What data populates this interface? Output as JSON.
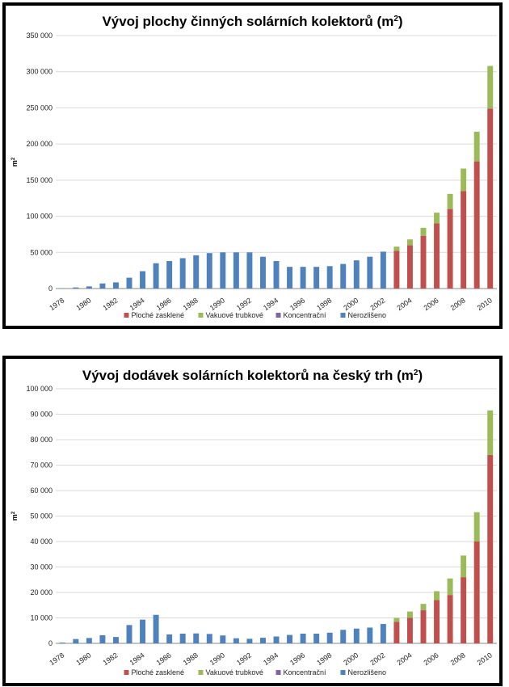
{
  "chart_data": [
    {
      "type": "bar",
      "stacked": true,
      "title": "Vývoj plochy činných solárních kolektorů (m",
      "title_sup": "2",
      "title_end": ")",
      "ylabel": "m",
      "ylabel_sup": "2",
      "ylim": [
        0,
        350000
      ],
      "yticks": [
        0,
        50000,
        100000,
        150000,
        200000,
        250000,
        300000,
        350000
      ],
      "ytick_labels": [
        "0",
        "50 000",
        "100 000",
        "150 000",
        "200 000",
        "250 000",
        "300 000",
        "350 000"
      ],
      "categories": [
        "1978",
        "1979",
        "1980",
        "1981",
        "1982",
        "1983",
        "1984",
        "1985",
        "1986",
        "1987",
        "1988",
        "1989",
        "1990",
        "1991",
        "1992",
        "1993",
        "1994",
        "1995",
        "1996",
        "1997",
        "1998",
        "1999",
        "2000",
        "2001",
        "2002",
        "2003",
        "2004",
        "2005",
        "2006",
        "2007",
        "2008",
        "2009",
        "2010"
      ],
      "xtick_labels": [
        "1978",
        "",
        "1980",
        "",
        "1982",
        "",
        "1984",
        "",
        "1986",
        "",
        "1988",
        "",
        "1990",
        "",
        "1992",
        "",
        "1994",
        "",
        "1996",
        "",
        "1998",
        "",
        "2000",
        "",
        "2002",
        "",
        "2004",
        "",
        "2006",
        "",
        "2008",
        "",
        "2010"
      ],
      "grid": true,
      "legend_position": "bottom",
      "series": [
        {
          "name": "Ploché zasklené",
          "color": "#c0504d",
          "values": [
            0,
            0,
            0,
            0,
            0,
            0,
            0,
            0,
            0,
            0,
            0,
            0,
            0,
            0,
            0,
            0,
            0,
            0,
            0,
            0,
            0,
            0,
            0,
            0,
            0,
            52000,
            60000,
            73000,
            90000,
            110000,
            135000,
            176000,
            249000
          ]
        },
        {
          "name": "Vakuové trubkové",
          "color": "#9bbb59",
          "values": [
            0,
            0,
            0,
            0,
            0,
            0,
            0,
            0,
            0,
            0,
            0,
            0,
            0,
            0,
            0,
            0,
            0,
            0,
            0,
            0,
            0,
            0,
            0,
            0,
            0,
            6000,
            8000,
            11000,
            15000,
            21000,
            31000,
            41000,
            59000
          ]
        },
        {
          "name": "Koncentrační",
          "color": "#8064a2",
          "values": [
            0,
            0,
            0,
            0,
            0,
            0,
            0,
            0,
            0,
            0,
            0,
            0,
            0,
            0,
            0,
            0,
            0,
            0,
            0,
            0,
            0,
            0,
            0,
            0,
            0,
            0,
            0,
            0,
            0,
            0,
            0,
            0,
            0
          ]
        },
        {
          "name": "Nerozlišeno",
          "color": "#4f81bd",
          "values": [
            300,
            1500,
            3000,
            7000,
            8500,
            15000,
            24000,
            35000,
            38000,
            42000,
            46000,
            49000,
            50000,
            50000,
            50000,
            44000,
            38000,
            30000,
            30000,
            30000,
            31000,
            34000,
            39000,
            44000,
            51000,
            0,
            0,
            0,
            0,
            0,
            0,
            0,
            0
          ]
        }
      ]
    },
    {
      "type": "bar",
      "stacked": true,
      "title": "Vývoj dodávek solárních kolektorů na český trh (m",
      "title_sup": "2",
      "title_end": ")",
      "ylabel": "m",
      "ylabel_sup": "2",
      "ylim": [
        0,
        100000
      ],
      "yticks": [
        0,
        10000,
        20000,
        30000,
        40000,
        50000,
        60000,
        70000,
        80000,
        90000,
        100000
      ],
      "ytick_labels": [
        "0",
        "10 000",
        "20 000",
        "30 000",
        "40 000",
        "50 000",
        "60 000",
        "70 000",
        "80 000",
        "90 000",
        "100 000"
      ],
      "categories": [
        "1978",
        "1979",
        "1980",
        "1981",
        "1982",
        "1983",
        "1984",
        "1985",
        "1986",
        "1987",
        "1988",
        "1989",
        "1990",
        "1991",
        "1992",
        "1993",
        "1994",
        "1995",
        "1996",
        "1997",
        "1998",
        "1999",
        "2000",
        "2001",
        "2002",
        "2003",
        "2004",
        "2005",
        "2006",
        "2007",
        "2008",
        "2009",
        "2010"
      ],
      "xtick_labels": [
        "1978",
        "",
        "1980",
        "",
        "1982",
        "",
        "1984",
        "",
        "1986",
        "",
        "1988",
        "",
        "1990",
        "",
        "1992",
        "",
        "1994",
        "",
        "1996",
        "",
        "1998",
        "",
        "2000",
        "",
        "2002",
        "",
        "2004",
        "",
        "2006",
        "",
        "2008",
        "",
        "2010"
      ],
      "grid": true,
      "legend_position": "bottom",
      "series": [
        {
          "name": "Ploché zasklené",
          "color": "#c0504d",
          "values": [
            0,
            0,
            0,
            0,
            0,
            0,
            0,
            0,
            0,
            0,
            0,
            0,
            0,
            0,
            0,
            0,
            0,
            0,
            0,
            0,
            0,
            0,
            0,
            0,
            0,
            8500,
            10000,
            13000,
            17000,
            19000,
            26000,
            40000,
            74000
          ]
        },
        {
          "name": "Vakuové trubkové",
          "color": "#9bbb59",
          "values": [
            0,
            0,
            0,
            0,
            0,
            0,
            0,
            0,
            0,
            0,
            0,
            0,
            0,
            0,
            0,
            0,
            0,
            0,
            0,
            0,
            0,
            0,
            0,
            0,
            0,
            1500,
            2500,
            2500,
            3500,
            6500,
            8500,
            11500,
            17500
          ]
        },
        {
          "name": "Koncentrační",
          "color": "#8064a2",
          "values": [
            0,
            0,
            0,
            0,
            0,
            0,
            0,
            0,
            0,
            0,
            0,
            0,
            0,
            0,
            0,
            0,
            0,
            0,
            0,
            0,
            0,
            0,
            0,
            0,
            0,
            0,
            0,
            0,
            0,
            0,
            0,
            0,
            0
          ]
        },
        {
          "name": "Nerozlišeno",
          "color": "#4f81bd",
          "values": [
            300,
            1700,
            2100,
            3200,
            2500,
            7200,
            9300,
            11200,
            3500,
            3800,
            3900,
            3700,
            3100,
            2000,
            1800,
            2200,
            2700,
            3300,
            3800,
            3800,
            4200,
            5300,
            5800,
            6200,
            7600,
            0,
            0,
            0,
            0,
            0,
            0,
            0,
            0
          ]
        }
      ]
    }
  ]
}
